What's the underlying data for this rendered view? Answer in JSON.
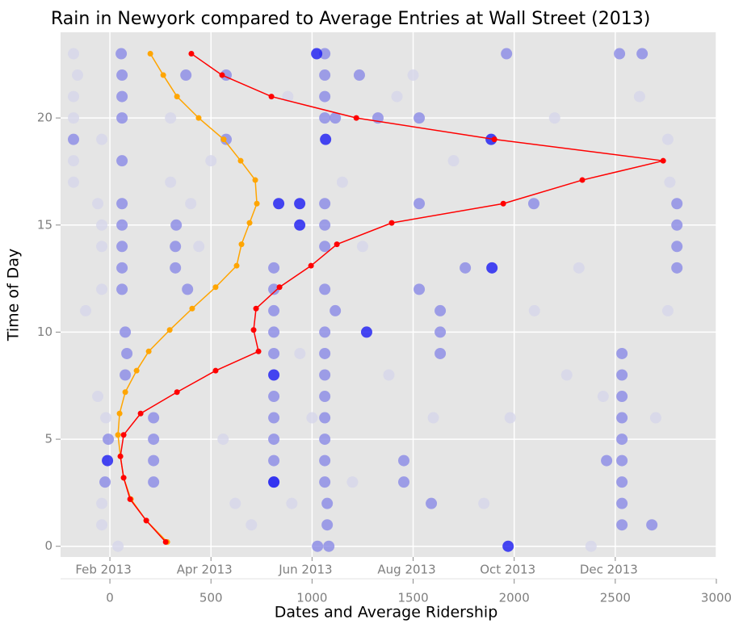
{
  "chart_data": {
    "type": "scatter",
    "title": "Rain in Newyork compared to Average Entries at Wall Street (2013)",
    "x_label": "Dates and Average Ridership",
    "y_label": "Time of Day",
    "xlim": [
      -244,
      3000
    ],
    "ylim": [
      -0.5,
      24
    ],
    "xticks": [
      0,
      500,
      1000,
      1500,
      2000,
      2500,
      3000
    ],
    "yticks": [
      0,
      5,
      10,
      15,
      20
    ],
    "x2ticks": [
      {
        "value": 0,
        "label": "Feb 2013"
      },
      {
        "value": 500,
        "label": "Apr 2013"
      },
      {
        "value": 1000,
        "label": "Jun 2013"
      },
      {
        "value": 1500,
        "label": "Aug 2013"
      },
      {
        "value": 2000,
        "label": "Oct 2013"
      },
      {
        "value": 2500,
        "label": "Dec 2013"
      }
    ],
    "grid": true,
    "series": [
      {
        "type": "scatter",
        "color": "#d6d6ea",
        "x": [
          -180,
          -160,
          -180,
          -180,
          -180,
          -180,
          -40,
          -60,
          -40,
          -40,
          -40,
          -120,
          -60,
          -20,
          -40,
          -40,
          40,
          300,
          300,
          400,
          440,
          500,
          560,
          620,
          700,
          900,
          940,
          1000,
          1150,
          1250,
          1380,
          1420,
          1500,
          1700,
          1850,
          1980,
          2100,
          2200,
          2320,
          2440,
          2620,
          2700,
          2760,
          2760,
          2770,
          2380,
          1600,
          1200,
          880,
          2260
        ],
        "values": [
          23,
          22,
          21,
          20,
          18,
          17,
          19,
          16,
          15,
          14,
          12,
          11,
          7,
          6,
          2,
          1,
          0,
          20,
          17,
          16,
          14,
          18,
          5,
          2,
          1,
          2,
          9,
          6,
          17,
          14,
          8,
          21,
          22,
          18,
          2,
          6,
          11,
          20,
          13,
          7,
          21,
          6,
          11,
          19,
          17,
          0,
          6,
          3,
          21,
          8
        ]
      },
      {
        "type": "scatter",
        "color": "#8a8ae6",
        "x": [
          811,
          811,
          811,
          811,
          811,
          811,
          811,
          811,
          811,
          811,
          1063,
          1063,
          1063,
          1063,
          1115,
          1063,
          1063,
          1063,
          1063,
          1115,
          1063,
          1063,
          1063,
          1063,
          1063,
          1063,
          1063,
          1063,
          1075,
          1075,
          1083,
          1027,
          1234,
          1326,
          1530,
          1530,
          1530,
          1454,
          1454,
          1590,
          1634,
          1634,
          1634,
          1758,
          2805,
          2805,
          2805,
          2805,
          2681,
          2533,
          2533,
          2533,
          2533,
          2457,
          2533,
          2533,
          2533,
          2533,
          2533,
          2633,
          2521,
          216,
          216,
          216,
          216,
          324,
          324,
          328,
          56,
          -180,
          575,
          575,
          1962,
          2097,
          -24,
          376,
          384,
          -8,
          84,
          76,
          76,
          60,
          60,
          60,
          60,
          60,
          60,
          60,
          60,
          60
        ],
        "values": [
          13,
          12,
          11,
          10,
          9,
          7,
          6,
          5,
          4,
          3,
          23,
          22,
          21,
          20,
          20,
          16,
          15,
          14,
          12,
          11,
          10,
          9,
          8,
          7,
          6,
          5,
          4,
          3,
          2,
          1,
          0,
          0,
          22,
          20,
          20,
          16,
          12,
          4,
          3,
          2,
          11,
          10,
          9,
          13,
          16,
          15,
          14,
          13,
          1,
          2,
          1,
          3,
          4,
          4,
          5,
          6,
          7,
          8,
          9,
          23,
          23,
          6,
          5,
          4,
          3,
          13,
          14,
          15,
          23,
          19,
          22,
          19,
          23,
          16,
          3,
          22,
          12,
          5,
          9,
          10,
          8,
          12,
          16,
          15,
          14,
          13,
          18,
          20,
          21,
          22
        ]
      },
      {
        "type": "scatter",
        "color": "#1a1af2",
        "x": [
          1023,
          1970,
          835,
          939,
          939,
          811,
          1270,
          -12,
          1890,
          1886,
          1067,
          811
        ],
        "values": [
          23,
          0,
          16,
          16,
          15,
          8,
          10,
          4,
          13,
          19,
          19,
          3
        ]
      },
      {
        "type": "line",
        "color": "#ffa500",
        "x": [
          200,
          264,
          332,
          439,
          563,
          647,
          719,
          727,
          691,
          651,
          627,
          523,
          407,
          296,
          192,
          132,
          76,
          48,
          40,
          52,
          68,
          104,
          180,
          284
        ],
        "values": [
          23,
          22,
          21,
          20,
          19,
          18,
          17.1,
          16,
          15.1,
          14.1,
          13.1,
          12.1,
          11.1,
          10.1,
          9.1,
          8.2,
          7.2,
          6.2,
          5.2,
          4.2,
          3.2,
          2.2,
          1.2,
          0.2
        ]
      },
      {
        "type": "line",
        "color": "#ff0000",
        "x": [
          403,
          555,
          799,
          1219,
          1902,
          2737,
          2337,
          1946,
          1394,
          1123,
          995,
          839,
          723,
          711,
          735,
          523,
          332,
          152,
          68,
          52,
          68,
          100,
          180,
          276
        ],
        "values": [
          23,
          22,
          21,
          20,
          19,
          18,
          17.1,
          16,
          15.1,
          14.1,
          13.1,
          12.1,
          11.1,
          10.1,
          9.1,
          8.2,
          7.2,
          6.2,
          5.2,
          4.2,
          3.2,
          2.2,
          1.2,
          0.2
        ]
      }
    ]
  }
}
